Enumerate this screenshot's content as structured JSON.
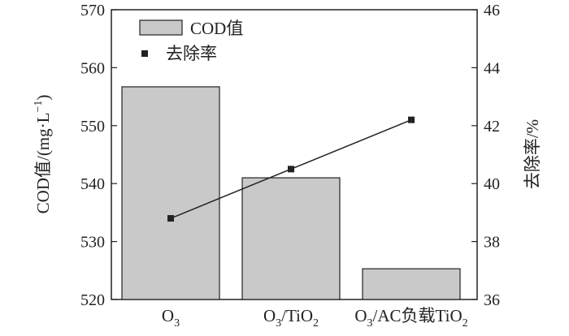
{
  "chart_data": {
    "type": "bar",
    "categories": [
      {
        "base": "O",
        "sub": "3",
        "rest": "",
        "sub2": ""
      },
      {
        "base": "O",
        "sub": "3",
        "rest": "/TiO",
        "sub2": "2"
      },
      {
        "base": "O",
        "sub": "3",
        "rest": "/AC负载TiO",
        "sub2": "2"
      }
    ],
    "series": [
      {
        "name": "COD值",
        "axis": "left",
        "type": "bar",
        "values": [
          556.7,
          541.0,
          525.3
        ],
        "color": "#c9c9c9"
      },
      {
        "name": "去除率",
        "axis": "right",
        "type": "line",
        "values": [
          38.8,
          40.5,
          42.2
        ],
        "color": "#222222"
      }
    ],
    "ylim_left": [
      520,
      570
    ],
    "yticks_left": [
      "520",
      "530",
      "540",
      "550",
      "560",
      "570"
    ],
    "ylim_right": [
      36,
      46
    ],
    "yticks_right": [
      "36",
      "38",
      "40",
      "42",
      "44",
      "46"
    ],
    "ylabel_left": {
      "text": "COD值/(mg·L",
      "sup": "−1",
      "close": ")"
    },
    "ylabel_right": "去除率/%",
    "legend": {
      "position": "top-left"
    },
    "grid": false
  }
}
